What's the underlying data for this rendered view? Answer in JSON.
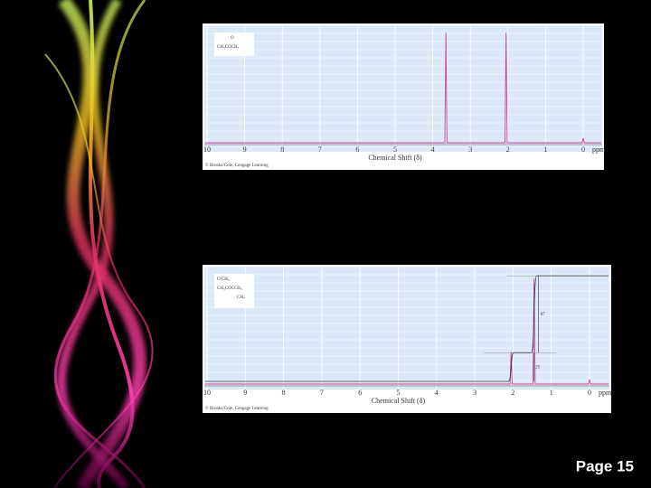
{
  "chart_data": [
    {
      "type": "line",
      "structure": [
        "O",
        "CH₃COCH₃"
      ],
      "xlabel": "Chemical Shift (δ)",
      "unit": "ppm",
      "credit": "© Brooks/Cole, Cengage Learning",
      "x": [
        3.65,
        2.05,
        0
      ],
      "values": [
        95,
        95,
        4
      ],
      "color": "#d0409a",
      "xlim": [
        10,
        0
      ],
      "xticks": [
        10,
        9,
        8,
        7,
        6,
        5,
        4,
        3,
        2,
        1,
        0
      ],
      "ylim": [
        0,
        100
      ],
      "grid": true
    },
    {
      "type": "line",
      "structure": [
        "O  CH₃",
        "CH₃COCCH₃",
        "CH₃"
      ],
      "xlabel": "Chemical Shift (δ)",
      "unit": "ppm",
      "credit": "© Brooks/Cole, Cengage Learning",
      "x": [
        2.05,
        1.45,
        0
      ],
      "values": [
        28,
        92,
        4
      ],
      "color": "#d0409a",
      "integrals": [
        25,
        67
      ],
      "integral_x": [
        2.05,
        1.45
      ],
      "xlim": [
        10,
        0
      ],
      "xticks": [
        10,
        9,
        8,
        7,
        6,
        5,
        4,
        3,
        2,
        1,
        0
      ],
      "ylim": [
        0,
        100
      ],
      "grid": true
    }
  ],
  "page": {
    "label": "Page 15"
  }
}
